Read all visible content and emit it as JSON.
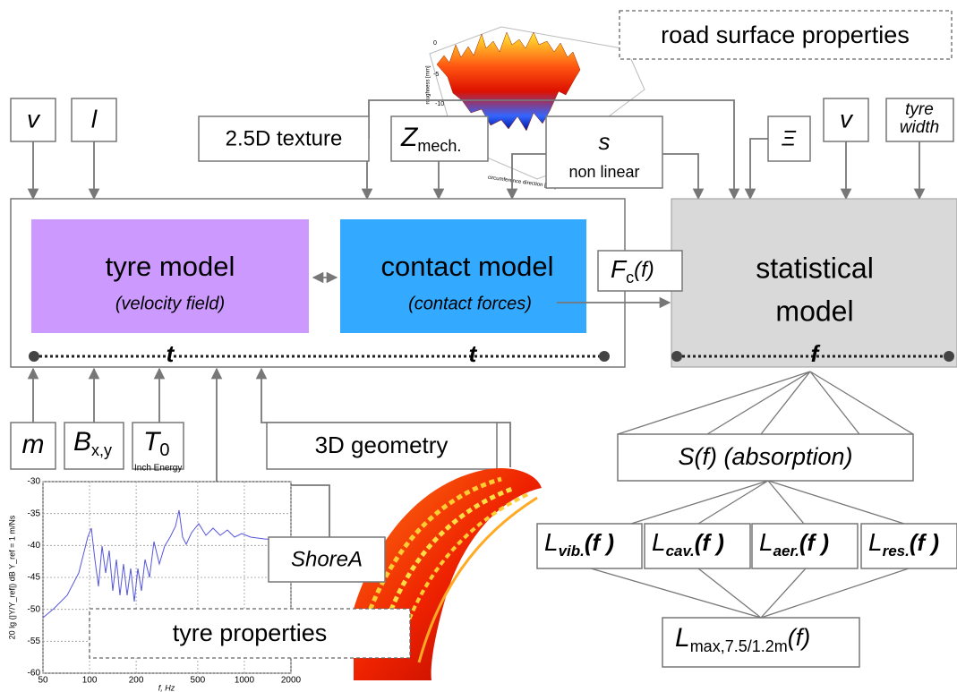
{
  "road_surface": {
    "label": "road surface properties",
    "plot": {
      "z_axis_label": "roughness [mm]",
      "x_axis_label": "circumference direction [mm]",
      "z_ticks": [
        "0",
        "-5",
        "-10"
      ]
    }
  },
  "inputs_left": {
    "v": "v",
    "l": "l"
  },
  "texture": "2.5D texture",
  "z_mech": {
    "main": "Z",
    "sub": "mech."
  },
  "s_input": {
    "symbol": "s",
    "note": "non linear"
  },
  "xi": "Ξ",
  "inputs_right": {
    "v": "v",
    "tyre_width": [
      "tyre",
      "width"
    ]
  },
  "tyre_model": {
    "title": "tyre model",
    "subtitle": "(velocity field)"
  },
  "contact_model": {
    "title": "contact model",
    "subtitle": "(contact forces)"
  },
  "force": {
    "main": "F",
    "sub": "c",
    "arg": "(f)"
  },
  "statistical_model": {
    "title": [
      "statistical",
      "model"
    ]
  },
  "time_axis": [
    "t",
    "t"
  ],
  "frequency_axis": "f",
  "tyre_inputs": {
    "m": "m",
    "b": {
      "main": "B",
      "sub": "x,y"
    },
    "t0": {
      "main": "T",
      "sub": "0"
    },
    "geometry": "3D geometry",
    "shore": "ShoreA"
  },
  "tyre_properties": "tyre properties",
  "absorption": "S(f) (absorption)",
  "levels": [
    {
      "main": "L",
      "sub": "vib.",
      "arg": "(f )"
    },
    {
      "main": "L",
      "sub": "cav.",
      "arg": "(f )"
    },
    {
      "main": "L",
      "sub": "aer.",
      "arg": "(f )"
    },
    {
      "main": "L",
      "sub": "res.",
      "arg": "(f )"
    }
  ],
  "total_level": {
    "main": "L",
    "sub": "max,7.5/1.2m",
    "arg": "(f)"
  },
  "inset_plot": {
    "title": "Inch Energy",
    "x_label": "f, Hz",
    "y_label": "20 lg (|Y/Y_ref|) dB   Y_ref = 1 m/Ns",
    "xlim": [
      50,
      2000
    ],
    "ylim": [
      -60,
      -30
    ],
    "xticks": [
      50,
      100,
      200,
      500,
      1000,
      2000
    ],
    "yticks": [
      -30,
      -35,
      -40,
      -45,
      -50,
      -55,
      -60
    ]
  }
}
